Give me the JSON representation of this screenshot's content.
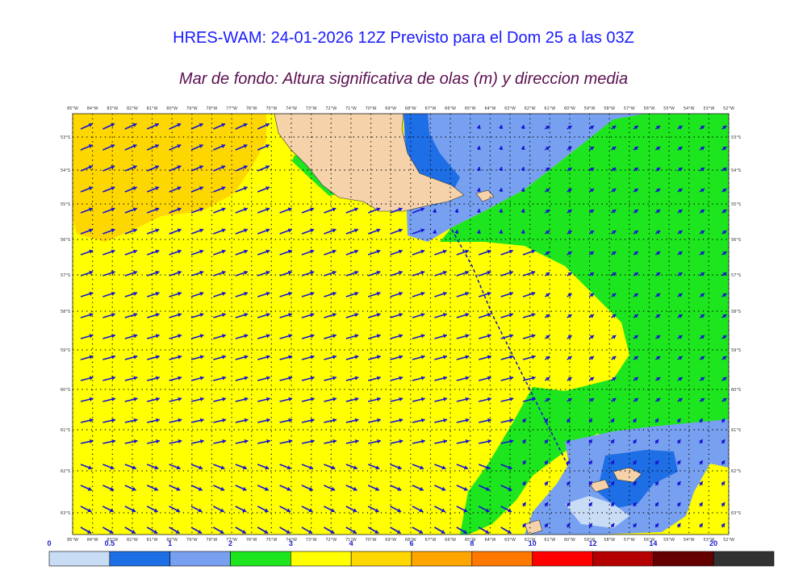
{
  "title": "HRES-WAM: 24-01-2026 12Z Previsto para el Dom 25 a las 03Z",
  "subtitle": "Mar de fondo: Altura significativa de olas (m) y direccion media",
  "lon_labels": [
    "85°W",
    "84°W",
    "83°W",
    "82°W",
    "81°W",
    "80°W",
    "79°W",
    "78°W",
    "77°W",
    "76°W",
    "75°W",
    "74°W",
    "73°W",
    "72°W",
    "71°W",
    "70°W",
    "69°W",
    "68°W",
    "67°W",
    "66°W",
    "65°W",
    "64°W",
    "63°W",
    "62°W",
    "61°W",
    "60°W",
    "59°W",
    "58°W",
    "57°W",
    "56°W",
    "55°W",
    "54°W",
    "53°W",
    "52°W"
  ],
  "lat_labels": [
    "53°S",
    "54°S",
    "55°S",
    "56°S",
    "57°S",
    "58°S",
    "59°S",
    "60°S",
    "61°S",
    "62°S",
    "63°S"
  ],
  "colorbar": {
    "ticks": [
      "0",
      "0.5",
      "1",
      "2",
      "3",
      "4",
      "6",
      "8",
      "10",
      "12",
      "14",
      "20"
    ],
    "colors": [
      "#c8dcf5",
      "#1e6ee6",
      "#78a0f0",
      "#1ee61e",
      "#ffff00",
      "#ffd700",
      "#ffa500",
      "#ff7800",
      "#ff0000",
      "#b40000",
      "#640000",
      "#323232"
    ]
  },
  "colors": {
    "title": "#1a1aff",
    "subtitle": "#5a1050",
    "arrows": "#1414d2",
    "land": "#f5d2aa"
  }
}
